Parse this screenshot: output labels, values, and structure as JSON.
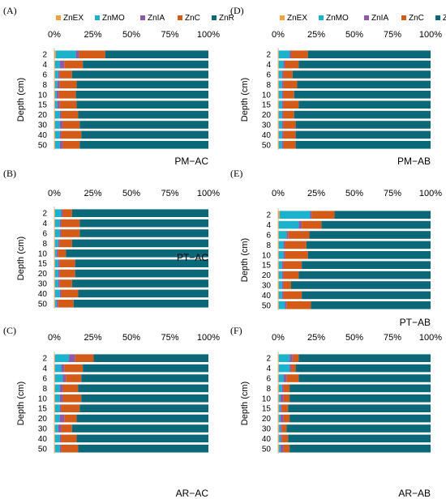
{
  "figure": {
    "legend_labels": [
      "ZnEX",
      "ZnMO",
      "ZnIA",
      "ZnC",
      "ZnR"
    ],
    "y_label": "Depth (cm)",
    "x_ticks": [
      "0%",
      "25%",
      "50%",
      "75%",
      "100%"
    ]
  },
  "colors": {
    "ZnEX": "#f2a03a",
    "ZnMO": "#1ab2cc",
    "ZnIA": "#8e5aa8",
    "ZnC": "#d45a18",
    "ZnR": "#0b6878"
  },
  "chart_data": [
    {
      "type": "bar",
      "orientation": "horizontal",
      "stacked": "percent",
      "panel_letter": "(A)",
      "title": "PM−AC",
      "categories": [
        "2",
        "4",
        "6",
        "8",
        "10",
        "15",
        "20",
        "30",
        "40",
        "50"
      ],
      "xlim": [
        0,
        100
      ],
      "legend_position": "top",
      "series": [
        {
          "name": "ZnEX",
          "values": [
            1,
            0.5,
            0.5,
            0.5,
            0.5,
            0.5,
            0.5,
            0.5,
            0.5,
            0.5
          ]
        },
        {
          "name": "ZnMO",
          "values": [
            13,
            3,
            2,
            1.5,
            1,
            1.5,
            3,
            3,
            3,
            3
          ]
        },
        {
          "name": "ZnIA",
          "values": [
            2,
            3,
            1,
            1.5,
            1.5,
            1.5,
            1,
            2,
            1,
            2
          ]
        },
        {
          "name": "ZnC",
          "values": [
            17,
            12,
            8,
            11,
            11,
            11,
            11,
            11,
            13,
            11
          ]
        },
        {
          "name": "ZnR",
          "values": [
            67,
            81.5,
            88.5,
            85.5,
            86,
            85.5,
            84.5,
            83.5,
            82.5,
            83.5
          ]
        }
      ]
    },
    {
      "type": "bar",
      "orientation": "horizontal",
      "stacked": "percent",
      "panel_letter": "(B)",
      "title": "PT−AC",
      "categories": [
        "2",
        "4",
        "6",
        "8",
        "10",
        "15",
        "20",
        "30",
        "40",
        "50"
      ],
      "xlim": [
        0,
        100
      ],
      "series": [
        {
          "name": "ZnEX",
          "values": [
            0.5,
            0.5,
            0.5,
            0.5,
            0.5,
            0.5,
            0.5,
            0.5,
            0.5,
            0.5
          ]
        },
        {
          "name": "ZnMO",
          "values": [
            4,
            3,
            3,
            2,
            1,
            2,
            2,
            2,
            3,
            1
          ]
        },
        {
          "name": "ZnIA",
          "values": [
            1,
            1,
            1,
            1,
            1,
            1,
            1,
            1,
            1,
            1
          ]
        },
        {
          "name": "ZnC",
          "values": [
            6,
            12,
            12,
            8,
            5,
            10,
            10,
            8,
            11,
            10
          ]
        },
        {
          "name": "ZnR",
          "values": [
            88.5,
            83.5,
            83.5,
            88.5,
            92.5,
            86.5,
            86.5,
            88.5,
            84.5,
            87.5
          ]
        }
      ]
    },
    {
      "type": "bar",
      "orientation": "horizontal",
      "stacked": "percent",
      "panel_letter": "(C)",
      "title": "AR−AC",
      "categories": [
        "2",
        "4",
        "6",
        "8",
        "10",
        "15",
        "20",
        "30",
        "40",
        "50"
      ],
      "xlim": [
        0,
        100
      ],
      "series": [
        {
          "name": "ZnEX",
          "values": [
            0.5,
            0.5,
            0.5,
            0.5,
            0.5,
            0.5,
            0.5,
            0.5,
            0.5,
            0.5
          ]
        },
        {
          "name": "ZnMO",
          "values": [
            9,
            4,
            5,
            3,
            3,
            3,
            3,
            2,
            3,
            3
          ]
        },
        {
          "name": "ZnIA",
          "values": [
            4,
            2,
            2,
            2,
            2,
            1,
            3,
            2,
            1,
            1
          ]
        },
        {
          "name": "ZnC",
          "values": [
            12,
            12,
            10,
            10,
            12,
            12,
            8,
            7,
            10,
            11
          ]
        },
        {
          "name": "ZnR",
          "values": [
            74.5,
            81.5,
            82.5,
            84.5,
            82.5,
            83.5,
            85.5,
            88.5,
            85.5,
            84.5
          ]
        }
      ]
    },
    {
      "type": "bar",
      "orientation": "horizontal",
      "stacked": "percent",
      "panel_letter": "(D)",
      "title": "PM−AB",
      "categories": [
        "2",
        "4",
        "6",
        "8",
        "10",
        "15",
        "20",
        "30",
        "40",
        "50"
      ],
      "xlim": [
        0,
        100
      ],
      "legend_position": "top",
      "series": [
        {
          "name": "ZnEX",
          "values": [
            0.5,
            0.5,
            0.5,
            0.5,
            0.5,
            0.5,
            0.5,
            0.5,
            0.5,
            0.5
          ]
        },
        {
          "name": "ZnMO",
          "values": [
            7,
            3,
            2,
            2,
            2,
            2,
            2,
            2,
            2,
            2
          ]
        },
        {
          "name": "ZnIA",
          "values": [
            1,
            1,
            1,
            1,
            1,
            1,
            1,
            1,
            1,
            1
          ]
        },
        {
          "name": "ZnC",
          "values": [
            11,
            9,
            6,
            9,
            7,
            10,
            7,
            8,
            8,
            8
          ]
        },
        {
          "name": "ZnR",
          "values": [
            80.5,
            86.5,
            90.5,
            87.5,
            89.5,
            86.5,
            89.5,
            88.5,
            88.5,
            88.5
          ]
        }
      ]
    },
    {
      "type": "bar",
      "orientation": "horizontal",
      "stacked": "percent",
      "panel_letter": "(E)",
      "title": "PT−AB",
      "categories": [
        "2",
        "4",
        "6",
        "8",
        "10",
        "15",
        "20",
        "30",
        "40",
        "50"
      ],
      "xlim": [
        0,
        100
      ],
      "series": [
        {
          "name": "ZnEX",
          "values": [
            1,
            0.5,
            0.5,
            0.5,
            0.5,
            0.5,
            0.5,
            0.5,
            0.5,
            0.5
          ]
        },
        {
          "name": "ZnMO",
          "values": [
            20,
            13,
            5,
            3,
            3,
            2,
            2,
            2,
            2,
            4
          ]
        },
        {
          "name": "ZnIA",
          "values": [
            1,
            2,
            1,
            1,
            1,
            1,
            1,
            1,
            1,
            1
          ]
        },
        {
          "name": "ZnC",
          "values": [
            15,
            13,
            14,
            14,
            15,
            12,
            10,
            5,
            12,
            16
          ]
        },
        {
          "name": "ZnR",
          "values": [
            63,
            71.5,
            79.5,
            81.5,
            80.5,
            84.5,
            86.5,
            91.5,
            84.5,
            78.5
          ]
        }
      ]
    },
    {
      "type": "bar",
      "orientation": "horizontal",
      "stacked": "percent",
      "panel_letter": "(F)",
      "title": "AR−AB",
      "categories": [
        "2",
        "4",
        "6",
        "8",
        "10",
        "15",
        "20",
        "30",
        "40",
        "50"
      ],
      "xlim": [
        0,
        100
      ],
      "series": [
        {
          "name": "ZnEX",
          "values": [
            0.5,
            0.5,
            0.5,
            0.5,
            0.5,
            0.5,
            0.5,
            0.5,
            0.5,
            0.5
          ]
        },
        {
          "name": "ZnMO",
          "values": [
            7,
            7,
            3,
            2,
            1,
            1,
            1,
            1,
            1,
            1
          ]
        },
        {
          "name": "ZnIA",
          "values": [
            2,
            1,
            2,
            1,
            2,
            1,
            2,
            1,
            1,
            2
          ]
        },
        {
          "name": "ZnC",
          "values": [
            4,
            3,
            8,
            4,
            4,
            4,
            4,
            3,
            4,
            4
          ]
        },
        {
          "name": "ZnR",
          "values": [
            86.5,
            88.5,
            86.5,
            92.5,
            92.5,
            93.5,
            92.5,
            94.5,
            93.5,
            92.5
          ]
        }
      ]
    }
  ]
}
